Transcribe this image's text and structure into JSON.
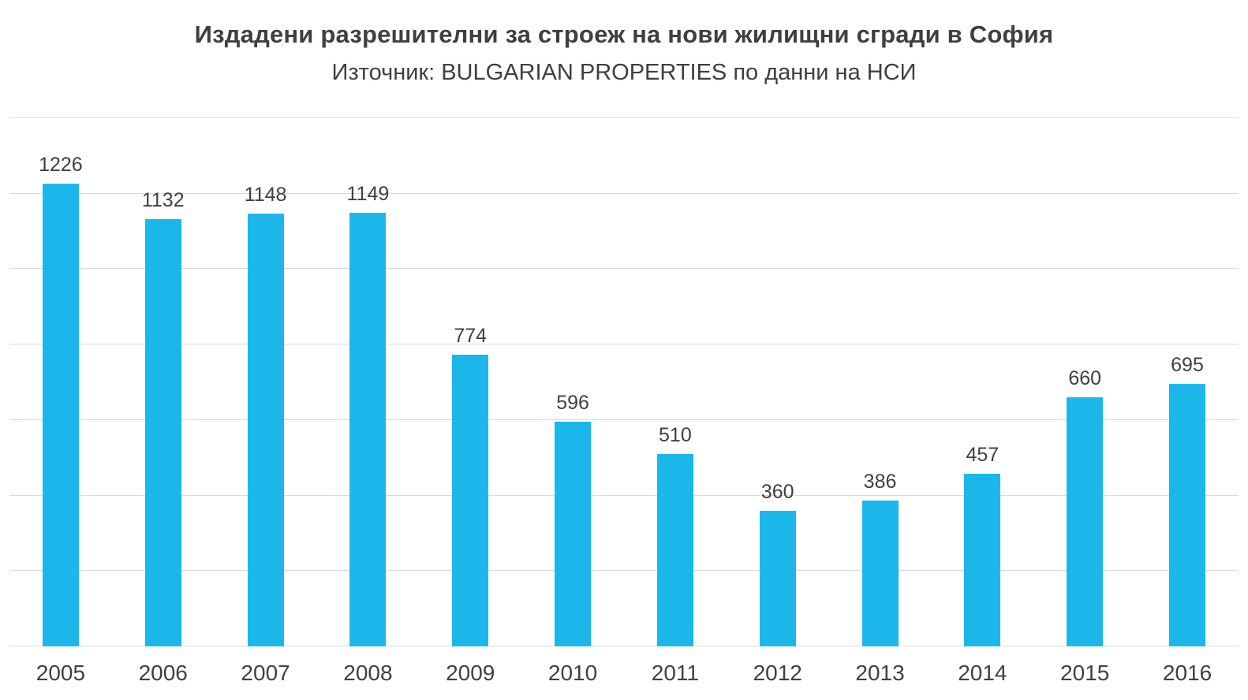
{
  "header": {
    "title": "Издадени разрешителни за строеж на нови жилищни сгради в София",
    "subtitle": "Източник: BULGARIAN PROPERTIES по данни на НСИ"
  },
  "colors": {
    "bar": "#1cb7ea",
    "gridline": "#d9d9d9",
    "text": "#404040"
  },
  "chart_data": {
    "type": "bar",
    "title": "Издадени разрешителни за строеж на нови жилищни сгради в София",
    "subtitle": "Източник: BULGARIAN PROPERTIES по данни на НСИ",
    "categories": [
      "2005",
      "2006",
      "2007",
      "2008",
      "2009",
      "2010",
      "2011",
      "2012",
      "2013",
      "2014",
      "2015",
      "2016"
    ],
    "values": [
      1226,
      1132,
      1148,
      1149,
      774,
      596,
      510,
      360,
      386,
      457,
      660,
      695
    ],
    "xlabel": "",
    "ylabel": "",
    "ylim": [
      0,
      1400
    ],
    "grid_step": 200,
    "grid": true,
    "legend": false,
    "data_labels": true
  }
}
